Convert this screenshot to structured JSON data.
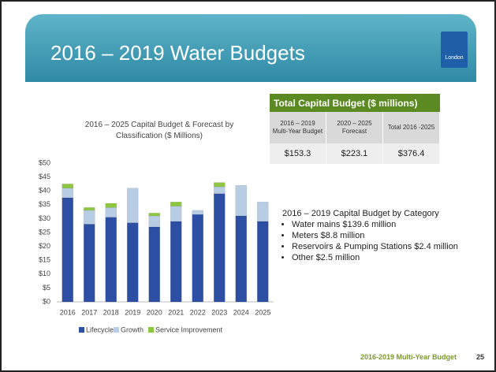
{
  "slide": {
    "title": "2016 – 2019 Water Budgets",
    "logo": "London",
    "footer": "2016-2019 Multi-Year Budget",
    "page": "25"
  },
  "chart_data": {
    "type": "stacked_bar",
    "title": "2016 – 2025 Capital Budget & Forecast by Classification ($ Millions)",
    "categories": [
      "2016",
      "2017",
      "2018",
      "2019",
      "2020",
      "2021",
      "2022",
      "2023",
      "2024",
      "2025"
    ],
    "series": [
      {
        "name": "Lifecycle",
        "color": "#2d4fa3",
        "values": [
          37.5,
          28,
          30.5,
          28.5,
          27,
          29,
          31.5,
          39,
          31,
          29
        ]
      },
      {
        "name": "Growth",
        "color": "#b8cce4",
        "values": [
          3.5,
          5,
          3.5,
          12.5,
          4,
          5.5,
          1.5,
          2.5,
          11,
          7
        ]
      },
      {
        "name": "Service Improvement",
        "color": "#8dc63f",
        "values": [
          1.5,
          1,
          1.5,
          0,
          1,
          1.5,
          0,
          1.5,
          0,
          0
        ]
      }
    ],
    "ylim": [
      0,
      50
    ],
    "yticks": [
      {
        "value": 0,
        "label": "$0"
      },
      {
        "value": 5,
        "label": "$5"
      },
      {
        "value": 10,
        "label": "$10"
      },
      {
        "value": 15,
        "label": "$15"
      },
      {
        "value": 20,
        "label": "$20"
      },
      {
        "value": 25,
        "label": "$25"
      },
      {
        "value": 30,
        "label": "$30"
      },
      {
        "value": 35,
        "label": "$35"
      },
      {
        "value": 40,
        "label": "$40"
      },
      {
        "value": 45,
        "label": "$45"
      },
      {
        "value": 50,
        "label": "$50"
      }
    ],
    "grid": false,
    "legend": "bottom"
  },
  "table": {
    "header": "Total Capital Budget ($ millions)",
    "columns": [
      "2016 – 2019 Multi-Year Budget",
      "2020 – 2025 Forecast",
      "Total 2016 -2025"
    ],
    "values": [
      "$153.3",
      "$223.1",
      "$376.4"
    ]
  },
  "categories_text": {
    "heading": "2016 – 2019 Capital  Budget by Category",
    "items": [
      "Water mains $139.6 million",
      "Meters $8.8 million",
      "Reservoirs & Pumping Stations $2.4 million",
      "Other $2.5 million"
    ]
  }
}
